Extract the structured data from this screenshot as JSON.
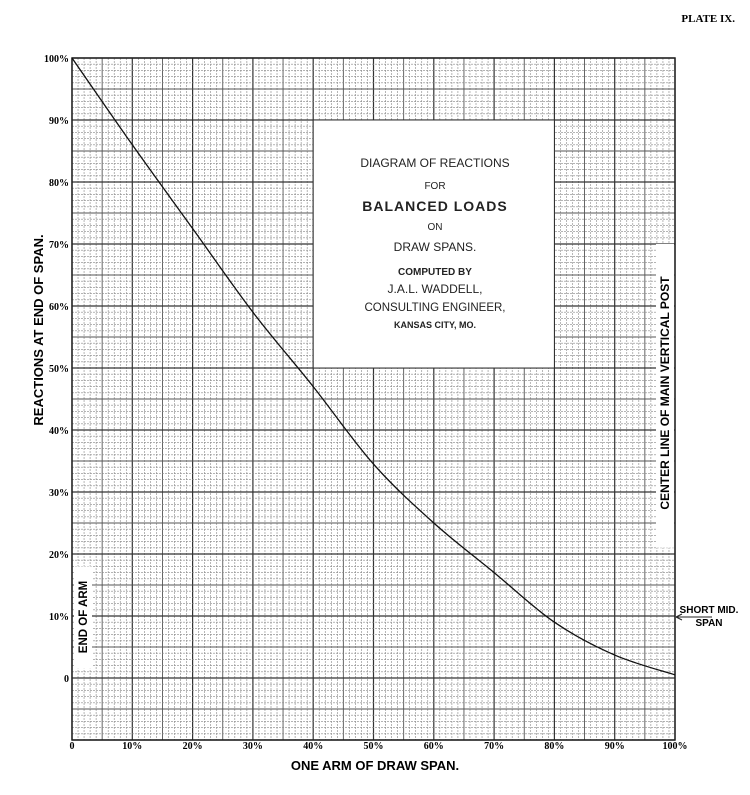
{
  "plate_label": "PLATE IX.",
  "chart_data": {
    "type": "line",
    "title_block": {
      "line1": "DIAGRAM OF REACTIONS",
      "line2": "FOR",
      "line3": "BALANCED LOADS",
      "line4": "ON",
      "line5": "DRAW SPANS.",
      "line6": "COMPUTED BY",
      "line7": "J.A.L. WADDELL,",
      "line8": "CONSULTING ENGINEER,",
      "line9": "KANSAS CITY, MO."
    },
    "xlabel": "ONE ARM OF DRAW SPAN.",
    "ylabel": "REACTIONS AT END OF SPAN.",
    "xlim": [
      0,
      100
    ],
    "ylim": [
      -10,
      100
    ],
    "grid": true,
    "x_ticks": [
      "0",
      "10%",
      "20%",
      "30%",
      "40%",
      "50%",
      "60%",
      "70%",
      "80%",
      "90%",
      "100%"
    ],
    "y_ticks": [
      "0",
      "10%",
      "20%",
      "30%",
      "40%",
      "50%",
      "60%",
      "70%",
      "80%",
      "90%",
      "100%"
    ],
    "series": [
      {
        "name": "Reaction",
        "x": [
          0,
          10,
          20,
          30,
          40,
          50,
          60,
          70,
          80,
          90,
          100
        ],
        "y": [
          100,
          86,
          72.5,
          59,
          47,
          34.5,
          25,
          17,
          9,
          3.7,
          0.5
        ]
      }
    ],
    "annotations": {
      "end_of_arm": "END OF ARM",
      "center_line": "CENTER LINE OF MAIN VERTICAL POST",
      "short_mid_1": "SHORT MID.",
      "short_mid_2": "SPAN"
    }
  }
}
